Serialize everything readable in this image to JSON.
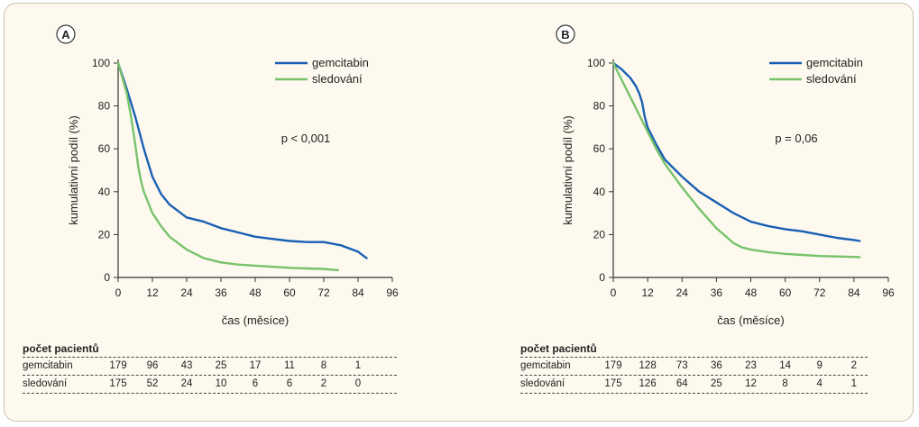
{
  "colors": {
    "gemcitabine": "#1a5fb4",
    "observation": "#78c26b",
    "axis": "#333333",
    "frame_bg": "#fdf9ee"
  },
  "chart_data": [
    {
      "type": "line",
      "panel_label": "A",
      "xlabel": "čas (měsíce)",
      "ylabel": "kumulativní podíl (%)",
      "xlim": [
        0,
        96
      ],
      "ylim": [
        0,
        100
      ],
      "xticks": [
        "0",
        "12",
        "24",
        "36",
        "48",
        "60",
        "72",
        "84",
        "96"
      ],
      "yticks": [
        "0",
        "20",
        "40",
        "60",
        "80",
        "100"
      ],
      "annotation": "p < 0,001",
      "legend_position": "top-right",
      "series": [
        {
          "name": "gemcitabin",
          "color": "#1a5fb4",
          "x": [
            0,
            3,
            6,
            9,
            12,
            15,
            18,
            24,
            30,
            36,
            42,
            48,
            54,
            60,
            66,
            72,
            78,
            84,
            87
          ],
          "y": [
            100,
            88,
            75,
            60,
            47,
            39,
            34,
            28,
            26,
            23,
            21,
            19,
            18,
            17,
            16.5,
            16.5,
            15,
            12,
            9
          ]
        },
        {
          "name": "sledování",
          "color": "#78c26b",
          "x": [
            0,
            3,
            4.5,
            6,
            7,
            8,
            9,
            12,
            15,
            18,
            24,
            30,
            36,
            42,
            48,
            54,
            60,
            66,
            72,
            75,
            77
          ],
          "y": [
            100,
            86,
            75,
            62,
            52,
            45,
            40,
            30,
            24,
            19,
            13,
            9,
            7,
            6,
            5.5,
            5,
            4.5,
            4.2,
            4,
            3.6,
            3.4
          ]
        }
      ],
      "risk_table": {
        "title": "počet pacientů",
        "x": [
          0,
          12,
          24,
          36,
          48,
          60,
          72,
          84
        ],
        "rows": [
          {
            "label": "gemcitabin",
            "values": [
              "179",
              "96",
              "43",
              "25",
              "17",
              "11",
              "8",
              "1"
            ]
          },
          {
            "label": "sledování",
            "values": [
              "175",
              "52",
              "24",
              "10",
              "6",
              "6",
              "2",
              "0"
            ]
          }
        ]
      }
    },
    {
      "type": "line",
      "panel_label": "B",
      "xlabel": "čas (měsíce)",
      "ylabel": "kumulativní podíl (%)",
      "xlim": [
        0,
        96
      ],
      "ylim": [
        0,
        100
      ],
      "xticks": [
        "0",
        "12",
        "24",
        "36",
        "48",
        "60",
        "72",
        "84",
        "96"
      ],
      "yticks": [
        "0",
        "20",
        "40",
        "60",
        "80",
        "100"
      ],
      "annotation": "p = 0,06",
      "legend_position": "top-right",
      "series": [
        {
          "name": "gemcitabin",
          "color": "#1a5fb4",
          "x": [
            0,
            3,
            6,
            8,
            9,
            10,
            11,
            12,
            15,
            18,
            24,
            30,
            36,
            42,
            48,
            54,
            60,
            66,
            72,
            78,
            84,
            86
          ],
          "y": [
            100,
            97,
            93,
            89,
            86,
            82,
            75,
            70,
            62,
            55,
            47,
            40,
            35,
            30,
            26,
            24,
            22.5,
            21.5,
            20,
            18.5,
            17.5,
            17
          ]
        },
        {
          "name": "sledování",
          "color": "#78c26b",
          "x": [
            0,
            3,
            6,
            9,
            12,
            15,
            18,
            24,
            30,
            36,
            42,
            45,
            48,
            54,
            60,
            66,
            72,
            78,
            84,
            86
          ],
          "y": [
            100,
            92,
            84,
            76,
            68,
            60,
            53,
            42,
            32,
            23,
            16,
            14,
            13,
            11.8,
            11,
            10.5,
            10,
            9.8,
            9.6,
            9.5
          ]
        }
      ],
      "risk_table": {
        "title": "počet pacientů",
        "x": [
          0,
          12,
          24,
          36,
          48,
          60,
          72,
          84
        ],
        "rows": [
          {
            "label": "gemcitabin",
            "values": [
              "179",
              "128",
              "73",
              "36",
              "23",
              "14",
              "9",
              "2"
            ]
          },
          {
            "label": "sledování",
            "values": [
              "175",
              "126",
              "64",
              "25",
              "12",
              "8",
              "4",
              "1"
            ]
          }
        ]
      }
    }
  ]
}
